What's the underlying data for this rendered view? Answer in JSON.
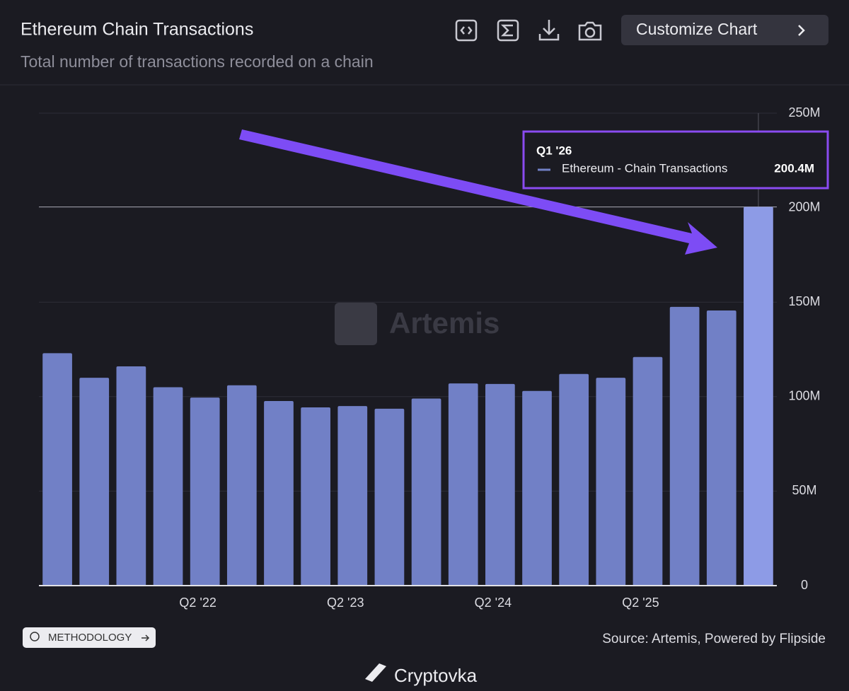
{
  "header": {
    "title": "Ethereum Chain Transactions",
    "subtitle": "Total number of transactions recorded on a chain",
    "button": "Customize Chart"
  },
  "chart_data": {
    "type": "bar",
    "watermark": "Artemis",
    "categories": [
      null,
      null,
      null,
      null,
      "Q2 '22",
      null,
      null,
      null,
      "Q2 '23",
      null,
      null,
      null,
      "Q2 '24",
      null,
      null,
      null,
      "Q2 '25",
      null,
      null,
      null
    ],
    "series": [
      {
        "name": "Ethereum - Chain Transactions",
        "color": "#7180c6",
        "highlight_color": "#8d9be6",
        "values": [
          123000000,
          110000000,
          116000000,
          105000000,
          99500000,
          106000000,
          97700000,
          94300000,
          95000000,
          93600000,
          99000000,
          107000000,
          106700000,
          103000000,
          112000000,
          110000000,
          121000000,
          147500000,
          145600000,
          200400000
        ]
      }
    ],
    "ylim": [
      0,
      250000000
    ],
    "yticks": [
      0,
      {
        "value": 50000000,
        "label": "50M"
      },
      {
        "value": 100000000,
        "label": "100M"
      },
      {
        "value": 150000000,
        "label": "150M"
      },
      {
        "value": 200000000,
        "label": "200M"
      },
      {
        "value": 250000000,
        "label": "250M"
      }
    ],
    "grid": true,
    "tooltip": {
      "title": "Q1 '26",
      "index": 19,
      "value_label": "200.4M"
    }
  },
  "footer": {
    "methodology": "METHODOLOGY",
    "source": "Source: Artemis, Powered by Flipside",
    "brand": "Cryptovka"
  }
}
